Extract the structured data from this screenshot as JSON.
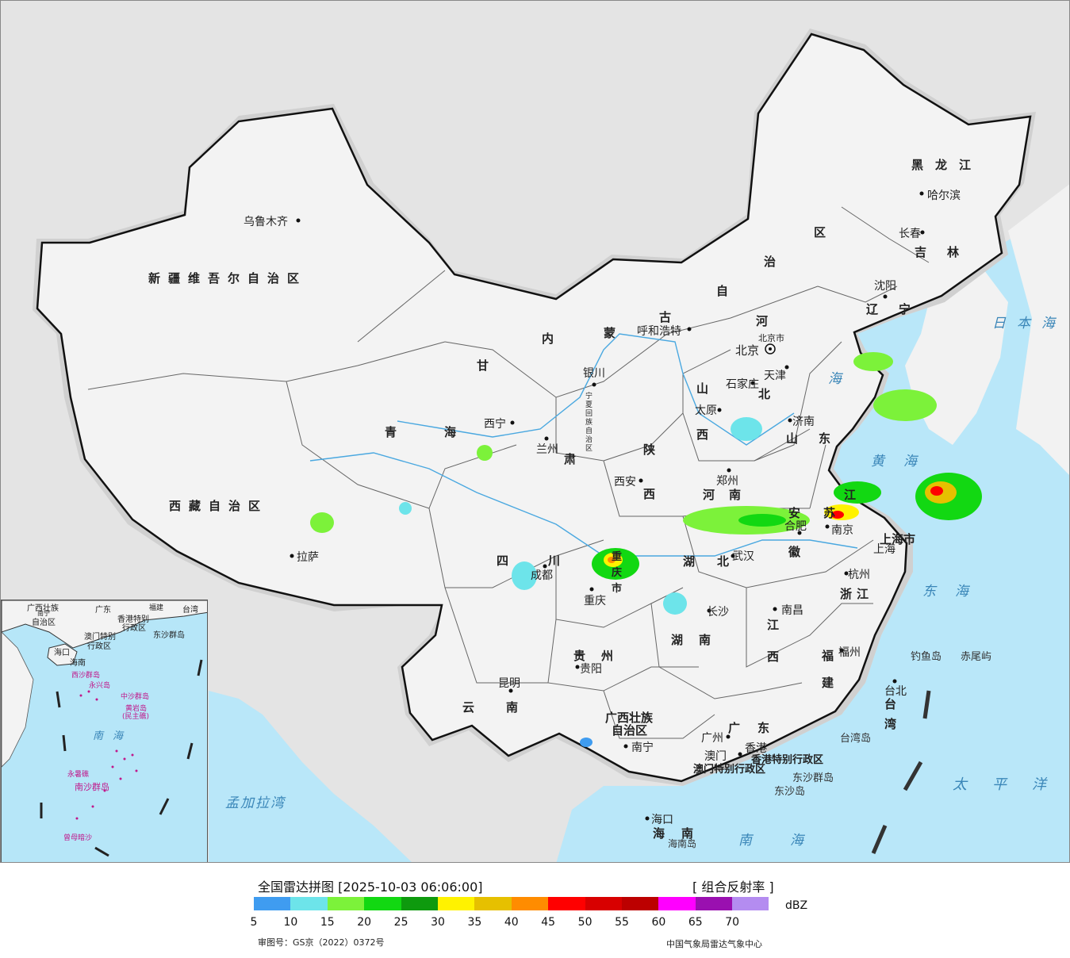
{
  "legend": {
    "title": "全国雷达拼图 [2025-10-03 06:06:00]",
    "product": "[ 组合反射率 ]",
    "unit": "dBZ",
    "colors": [
      "#3f9cf0",
      "#6de4ea",
      "#7cf23a",
      "#12d812",
      "#0e9a0e",
      "#fff200",
      "#e6c000",
      "#ff8c00",
      "#ff0000",
      "#d80000",
      "#bc0000",
      "#ff00ff",
      "#9a10b0",
      "#b48cf0"
    ],
    "ticks": [
      "5",
      "10",
      "15",
      "20",
      "25",
      "30",
      "35",
      "40",
      "45",
      "50",
      "55",
      "60",
      "65",
      "70"
    ]
  },
  "credits": {
    "left": "审图号：GS京（2022）0372号",
    "right": "中国气象局雷达气象中心"
  },
  "provinces": {
    "xinjiang": "新疆维吾尔自治区",
    "xizang": "西藏自治区",
    "qinghai": "青海",
    "gansu": "甘",
    "gansu2": "肃",
    "neimenggu1": "内",
    "neimenggu2": "蒙",
    "neimenggu3": "古",
    "neimenggu4": "自",
    "neimenggu5": "治",
    "neimenggu6": "区",
    "heilongjiang": "黑龙江",
    "jilin": "吉林",
    "liaoning": "辽宁",
    "hebei1": "河",
    "hebei2": "北",
    "shanxi1": "山",
    "shanxi2": "西",
    "shandong": "山东",
    "ningxia": "宁夏回族自治区",
    "shaanxi1": "陕",
    "shaanxi2": "西",
    "henan": "河南",
    "sichuan": "四川",
    "chongqing": "重庆市",
    "hubei": "湖北",
    "anhui1": "安",
    "anhui2": "徽",
    "jiangsu1": "江",
    "jiangsu2": "苏",
    "shanghai": "上海市",
    "zhejiang": "浙江",
    "jiangxi1": "江",
    "jiangxi2": "西",
    "hunan": "湖南",
    "guizhou": "贵州",
    "yunnan": "云南",
    "guangxi1": "广西壮族",
    "guangxi2": "自治区",
    "guangdong": "广东",
    "fujian1": "福",
    "fujian2": "建",
    "taiwan1": "台",
    "taiwan2": "湾",
    "hainan1": "海",
    "hainan2": "南",
    "hongkong": "香港特别行政区",
    "macau": "澳门特别行政区"
  },
  "cities": {
    "urumqi": "乌鲁木齐",
    "lhasa": "拉萨",
    "xining": "西宁",
    "lanzhou": "兰州",
    "yinchuan": "银川",
    "hohhot": "呼和浩特",
    "beijing": "北京",
    "beijingshi": "北京市",
    "tianjin": "天津",
    "shijiazhuang": "石家庄",
    "taiyuan": "太原",
    "jinan": "济南",
    "xian": "西安",
    "zhengzhou": "郑州",
    "chengdu": "成都",
    "chongqing": "重庆",
    "wuhan": "武汉",
    "hefei": "合肥",
    "nanjing": "南京",
    "shanghai": "上海",
    "hangzhou": "杭州",
    "nanchang": "南昌",
    "changsha": "长沙",
    "guiyang": "贵阳",
    "kunming": "昆明",
    "nanning": "南宁",
    "guangzhou": "广州",
    "macau": "澳门",
    "hongkong": "香港",
    "fuzhou": "福州",
    "taipei": "台北",
    "haikou": "海口",
    "shenyang": "沈阳",
    "changchun": "长春",
    "harbin": "哈尔滨"
  },
  "seas": {
    "japan_sea": "日本海",
    "bohai": "海",
    "yellow_sea": "黄海",
    "east_sea": "东海",
    "south_sea": "南海",
    "pacific": "太平洋",
    "bengal": "孟加拉湾"
  },
  "islands": {
    "diaoyu": "钓鱼岛",
    "chiwei": "赤尾屿",
    "taiwan_island": "台湾岛",
    "dongsha_islands": "东沙群岛",
    "dongsha_island": "东沙岛",
    "hainan_island": "海南岛"
  },
  "inset": {
    "guangxi": "广西壮族",
    "guangxi2": "自治区",
    "guangdong": "广东",
    "fujian": "福建",
    "taiwan": "台湾",
    "nanning": "南宁",
    "hongkong": "香港特别",
    "hongkong2": "行政区",
    "macau": "澳门特别",
    "macau2": "行政区",
    "dongsha": "东沙群岛",
    "haikou": "海口",
    "hainan": "海南",
    "xisha": "西沙群岛",
    "yongxing": "永兴岛",
    "zhongsha": "中沙群岛",
    "huangyan": "黄岩岛",
    "minzhu": "(民主礁)",
    "south_sea": "南海",
    "yongshu": "永暑礁",
    "nansha": "南沙群岛",
    "zengmu": "曾母暗沙"
  }
}
